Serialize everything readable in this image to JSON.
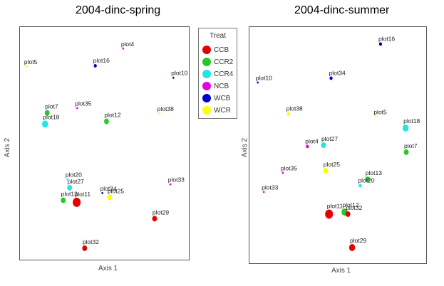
{
  "chart_data": [
    {
      "type": "scatter",
      "title": "2004-dinc-spring",
      "xlabel": "Axis 1",
      "ylabel": "Axis 2",
      "xlim": [
        0,
        100
      ],
      "ylim": [
        0,
        100
      ],
      "points": [
        {
          "label": "plot4",
          "x": 61.7,
          "y": 92.3,
          "group": "NCB",
          "size": 1
        },
        {
          "label": "plot5",
          "x": 1.3,
          "y": 84.3,
          "group": "WCR",
          "size": 1
        },
        {
          "label": "plot16",
          "x": 44.3,
          "y": 84.6,
          "group": "WCB",
          "size": 2
        },
        {
          "label": "plot10",
          "x": 93.0,
          "y": 79.3,
          "group": "WCB",
          "size": 1
        },
        {
          "label": "plot35",
          "x": 33.0,
          "y": 65.7,
          "group": "NCB",
          "size": 1
        },
        {
          "label": "plot7",
          "x": 14.3,
          "y": 63.6,
          "group": "CCR2",
          "size": 3
        },
        {
          "label": "plot12",
          "x": 51.3,
          "y": 59.8,
          "group": "CCR2",
          "size": 3
        },
        {
          "label": "plot38",
          "x": 84.3,
          "y": 63.3,
          "group": "WCR",
          "size": 1
        },
        {
          "label": "plot18",
          "x": 13.0,
          "y": 58.6,
          "group": "CCR4",
          "size": 4
        },
        {
          "label": "plot20",
          "x": 27.0,
          "y": 34.0,
          "group": "CCR4",
          "size": 1
        },
        {
          "label": "plot27",
          "x": 28.3,
          "y": 30.2,
          "group": "CCR4",
          "size": 3
        },
        {
          "label": "plot33",
          "x": 91.0,
          "y": 31.7,
          "group": "NCB",
          "size": 1
        },
        {
          "label": "plot34",
          "x": 48.7,
          "y": 27.8,
          "group": "WCB",
          "size": 1
        },
        {
          "label": "plot25",
          "x": 53.3,
          "y": 25.9,
          "group": "WCR",
          "size": 3
        },
        {
          "label": "plot13",
          "x": 24.3,
          "y": 24.6,
          "group": "CCR2",
          "size": 3
        },
        {
          "label": "plot11",
          "x": 32.7,
          "y": 23.7,
          "group": "CCB",
          "size": 5
        },
        {
          "label": "plot29",
          "x": 81.3,
          "y": 16.4,
          "group": "CCB",
          "size": 3
        },
        {
          "label": "plot32",
          "x": 37.7,
          "y": 3.2,
          "group": "CCB",
          "size": 3
        }
      ]
    },
    {
      "type": "scatter",
      "title": "2004-dinc-summer",
      "xlabel": "Axis 1",
      "ylabel": "Axis 2",
      "xlim": [
        0,
        100
      ],
      "ylim": [
        0,
        100
      ],
      "points": [
        {
          "label": "plot16",
          "x": 75.4,
          "y": 94.4,
          "group": "WCB",
          "size": 2
        },
        {
          "label": "plot10",
          "x": 2.4,
          "y": 77.5,
          "group": "WCB",
          "size": 1
        },
        {
          "label": "plot34",
          "x": 46.0,
          "y": 79.4,
          "group": "WCB",
          "size": 2
        },
        {
          "label": "plot38",
          "x": 20.6,
          "y": 63.8,
          "group": "WCR",
          "size": 2
        },
        {
          "label": "plot5",
          "x": 72.6,
          "y": 62.5,
          "group": "WCR",
          "size": 1
        },
        {
          "label": "plot18",
          "x": 90.3,
          "y": 57.5,
          "group": "CCR4",
          "size": 4
        },
        {
          "label": "plot27",
          "x": 41.5,
          "y": 50.0,
          "group": "CCR4",
          "size": 3
        },
        {
          "label": "plot4",
          "x": 31.9,
          "y": 49.4,
          "group": "NCB",
          "size": 2
        },
        {
          "label": "plot7",
          "x": 90.7,
          "y": 46.9,
          "group": "CCR2",
          "size": 3
        },
        {
          "label": "plot35",
          "x": 17.3,
          "y": 37.8,
          "group": "NCB",
          "size": 1
        },
        {
          "label": "plot25",
          "x": 42.7,
          "y": 38.8,
          "group": "WCR",
          "size": 3
        },
        {
          "label": "plot13",
          "x": 67.7,
          "y": 35.0,
          "group": "CCR2",
          "size": 3
        },
        {
          "label": "plot20",
          "x": 63.3,
          "y": 32.2,
          "group": "CCR4",
          "size": 2
        },
        {
          "label": "plot33",
          "x": 6.0,
          "y": 29.4,
          "group": "NCB",
          "size": 1
        },
        {
          "label": "plot11",
          "x": 44.8,
          "y": 19.7,
          "group": "CCB",
          "size": 5
        },
        {
          "label": "plot12",
          "x": 54.0,
          "y": 20.6,
          "group": "CCR2",
          "size": 4
        },
        {
          "label": "plot32",
          "x": 56.0,
          "y": 19.7,
          "group": "CCB",
          "size": 3
        },
        {
          "label": "plot29",
          "x": 58.5,
          "y": 5.0,
          "group": "CCB",
          "size": 4
        }
      ]
    }
  ],
  "legend": {
    "title": "Treat",
    "items": [
      {
        "label": "CCB",
        "color": "#e60000"
      },
      {
        "label": "CCR2",
        "color": "#22cc22"
      },
      {
        "label": "CCR4",
        "color": "#22e6e6"
      },
      {
        "label": "NCB",
        "color": "#e600e6"
      },
      {
        "label": "WCB",
        "color": "#0000cc"
      },
      {
        "label": "WCR",
        "color": "#ffff00"
      }
    ]
  }
}
